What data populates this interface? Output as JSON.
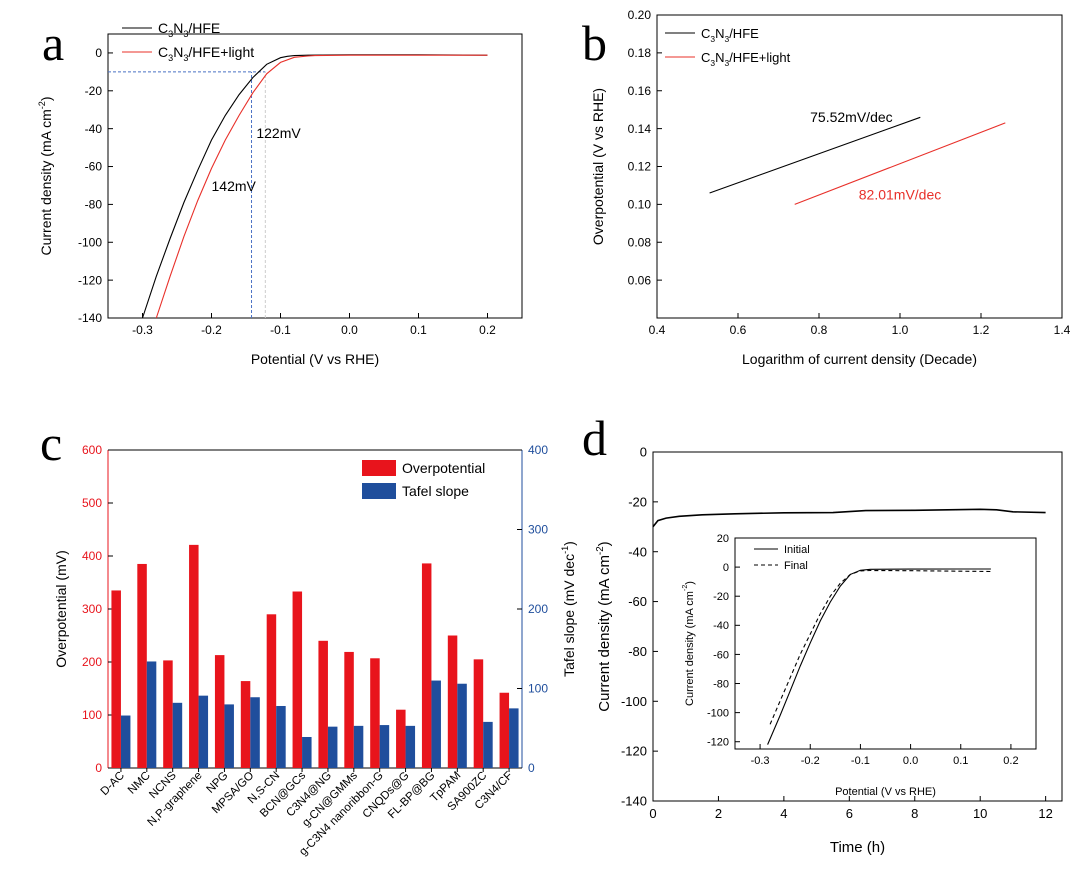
{
  "chart_data": [
    {
      "panel": "a",
      "type": "line",
      "xlabel": "Potential (V vs RHE)",
      "ylabel": "Current density (mA cm",
      "ylabel_sup": "-2",
      "ylabel_close": ")",
      "xlim": [
        -0.35,
        0.25
      ],
      "ylim": [
        -140,
        10
      ],
      "xticks": [
        -0.3,
        -0.2,
        -0.1,
        0.0,
        0.1,
        0.2
      ],
      "xtick_labels": [
        "-0.3",
        "-0.2",
        "-0.1",
        "0.0",
        "0.1",
        "0.2"
      ],
      "yticks": [
        0,
        -20,
        -40,
        -60,
        -80,
        -100,
        -120,
        -140
      ],
      "ytick_labels": [
        "0",
        "-20",
        "-40",
        "-60",
        "-80",
        "-100",
        "-120",
        "-140"
      ],
      "legend": [
        {
          "base": "C",
          "s1": "3",
          "mid": "N",
          "s2": "3",
          "tail": "/HFE",
          "color": "#000000"
        },
        {
          "base": "C",
          "s1": "3",
          "mid": "N",
          "s2": "3",
          "tail": "/HFE+light",
          "color": "#e8302a"
        }
      ],
      "series": [
        {
          "x": [
            -0.3,
            -0.28,
            -0.26,
            -0.24,
            -0.22,
            -0.2,
            -0.18,
            -0.16,
            -0.14,
            -0.12,
            -0.1,
            -0.09,
            -0.08,
            -0.06,
            0.0,
            0.1,
            0.2
          ],
          "y": [
            -140,
            -118,
            -98,
            -79,
            -62,
            -46,
            -33,
            -22,
            -13,
            -6,
            -2.5,
            -1.8,
            -1.4,
            -1.2,
            -1.0,
            -1.0,
            -1.2
          ],
          "color": "#000000"
        },
        {
          "x": [
            -0.28,
            -0.26,
            -0.24,
            -0.22,
            -0.2,
            -0.18,
            -0.16,
            -0.14,
            -0.12,
            -0.1,
            -0.08,
            -0.06,
            -0.05,
            0.0,
            0.1,
            0.2
          ],
          "y": [
            -140,
            -118,
            -97,
            -78,
            -61,
            -46,
            -33,
            -21,
            -11,
            -5,
            -2.3,
            -1.6,
            -1.4,
            -1.2,
            -1.2,
            -1.2
          ],
          "color": "#e8302a"
        }
      ],
      "guides": [
        {
          "type": "h",
          "y": -10,
          "x_from": -0.35,
          "x_to": -0.122,
          "color": "#4a72c4"
        },
        {
          "type": "v",
          "x": -0.142,
          "y_from": -140,
          "y_to": -10,
          "color": "#4a72c4"
        },
        {
          "type": "v",
          "x": -0.122,
          "y_from": -140,
          "y_to": -10,
          "color": "#cccccc"
        }
      ],
      "annotations": [
        {
          "text": "122mV",
          "x": -0.135,
          "y": -45
        },
        {
          "text": "142mV",
          "x": -0.2,
          "y": -73
        }
      ]
    },
    {
      "panel": "b",
      "type": "line",
      "xlabel": "Logarithm of current density (Decade)",
      "ylabel": "Overpotential (V vs RHE)",
      "xlim": [
        0.4,
        1.4
      ],
      "ylim": [
        0.04,
        0.2
      ],
      "xticks": [
        0.4,
        0.6,
        0.8,
        1.0,
        1.2,
        1.4
      ],
      "xtick_labels": [
        "0.4",
        "0.6",
        "0.8",
        "1.0",
        "1.2",
        "1.4"
      ],
      "yticks": [
        0.06,
        0.08,
        0.1,
        0.12,
        0.14,
        0.16,
        0.18,
        0.2
      ],
      "ytick_labels": [
        "0.06",
        "0.08",
        "0.10",
        "0.12",
        "0.14",
        "0.16",
        "0.18",
        "0.20"
      ],
      "legend": [
        {
          "base": "C",
          "s1": "3",
          "mid": "N",
          "s2": "3",
          "tail": "/HFE",
          "color": "#000000"
        },
        {
          "base": "C",
          "s1": "3",
          "mid": "N",
          "s2": "3",
          "tail": "/HFE+light",
          "color": "#e8302a"
        }
      ],
      "series": [
        {
          "x": [
            0.53,
            1.05
          ],
          "y": [
            0.106,
            0.146
          ],
          "color": "#000000"
        },
        {
          "x": [
            0.74,
            1.26
          ],
          "y": [
            0.1,
            0.143
          ],
          "color": "#e8302a"
        }
      ],
      "annotations": [
        {
          "text": "75.52mV/dec",
          "x": 0.88,
          "y": 0.1435,
          "color": "#000000"
        },
        {
          "text": "82.01mV/dec",
          "x": 1.0,
          "y": 0.1025,
          "color": "#e8302a"
        }
      ]
    },
    {
      "panel": "c",
      "type": "bar",
      "ylabel": "Overpotential (mV)",
      "y2label": "Tafel slope (mV dec",
      "y2label_sup": "-1",
      "y2label_close": ")",
      "ylim": [
        0,
        600
      ],
      "y2lim": [
        0,
        400
      ],
      "yticks": [
        0,
        100,
        200,
        300,
        400,
        500,
        600
      ],
      "ytick_labels": [
        "0",
        "100",
        "200",
        "300",
        "400",
        "500",
        "600"
      ],
      "y2ticks": [
        0,
        100,
        200,
        300,
        400
      ],
      "y2tick_labels": [
        "0",
        "100",
        "200",
        "300",
        "400"
      ],
      "categories": [
        "D-AC",
        "NMC",
        "NCNS",
        "N,P-graphene",
        "NPG",
        "MPSA/GO",
        "N,S-CN",
        "BCN@GCs",
        "C3N4@NG",
        "g-CN@GMMs",
        "g-C3N4 nanoribbon-G",
        "CNQDs@G",
        "FL-BP@BG",
        "TpPAM",
        "SA900ZC",
        "C3N4/CF"
      ],
      "series": [
        {
          "name": "Overpotential",
          "axis": "left",
          "color": "#e8141c",
          "values": [
            335,
            385,
            203,
            421,
            213,
            164,
            290,
            333,
            240,
            219,
            207,
            110,
            386,
            250,
            205,
            142
          ]
        },
        {
          "name": "Tafel slope",
          "axis": "right",
          "color": "#1f4e9c",
          "values": [
            66,
            134,
            82,
            91,
            80,
            89,
            78,
            39,
            52,
            53,
            54,
            53,
            110,
            106,
            58,
            75
          ]
        }
      ],
      "legend_position": "top-right"
    },
    {
      "panel": "d",
      "type": "line",
      "xlabel": "Time (h)",
      "ylabel": "Current density (mA cm",
      "ylabel_sup": "-2",
      "ylabel_close": ")",
      "xlim": [
        0,
        12.5
      ],
      "ylim": [
        -140,
        0
      ],
      "xticks": [
        0,
        2,
        4,
        6,
        8,
        10,
        12
      ],
      "xtick_labels": [
        "0",
        "2",
        "4",
        "6",
        "8",
        "10",
        "12"
      ],
      "yticks": [
        0,
        -20,
        -40,
        -60,
        -80,
        -100,
        -120,
        -140
      ],
      "ytick_labels": [
        "0",
        "-20",
        "-40",
        "-60",
        "-80",
        "-100",
        "-120",
        "-140"
      ],
      "series": [
        {
          "x": [
            0,
            0.15,
            0.4,
            0.8,
            1.5,
            2.5,
            4,
            5.5,
            6.5,
            8,
            9,
            10,
            10.5,
            11,
            12
          ],
          "y": [
            -30,
            -27.5,
            -26.5,
            -25.8,
            -25.2,
            -24.8,
            -24.4,
            -24.3,
            -23.5,
            -23.4,
            -23.2,
            -23.0,
            -23.2,
            -24.0,
            -24.3
          ],
          "color": "#000000"
        }
      ],
      "inset": {
        "xlabel": "Potential (V vs RHE)",
        "ylabel": "Current density (mA cm",
        "ylabel_sup": "-2",
        "ylabel_close": ")",
        "xlim": [
          -0.35,
          0.25
        ],
        "ylim": [
          -125,
          20
        ],
        "xticks": [
          -0.3,
          -0.2,
          -0.1,
          0.0,
          0.1,
          0.2
        ],
        "xtick_labels": [
          "-0.3",
          "-0.2",
          "-0.1",
          "0.0",
          "0.1",
          "0.2"
        ],
        "yticks": [
          20,
          0,
          -20,
          -40,
          -60,
          -80,
          -100,
          -120
        ],
        "ytick_labels": [
          "20",
          "0",
          "-20",
          "-40",
          "-60",
          "-80",
          "-100",
          "-120"
        ],
        "legend": [
          {
            "label": "Initial",
            "style": "solid"
          },
          {
            "label": "Final",
            "style": "dashed"
          }
        ],
        "series": [
          {
            "name": "Initial",
            "style": "solid",
            "x": [
              -0.285,
              -0.26,
              -0.24,
              -0.22,
              -0.2,
              -0.18,
              -0.16,
              -0.14,
              -0.12,
              -0.1,
              -0.08,
              0.0,
              0.1,
              0.16
            ],
            "y": [
              -122,
              -102,
              -85,
              -68,
              -52,
              -37,
              -24,
              -13,
              -5,
              -2.2,
              -1.5,
              -1.4,
              -1.3,
              -1.3
            ]
          },
          {
            "name": "Final",
            "style": "dashed",
            "x": [
              -0.28,
              -0.26,
              -0.24,
              -0.22,
              -0.2,
              -0.18,
              -0.16,
              -0.14,
              -0.12,
              -0.1,
              -0.08,
              0.0,
              0.1,
              0.16
            ],
            "y": [
              -108,
              -92,
              -76,
              -60,
              -46,
              -32,
              -20,
              -11,
              -5,
              -2.6,
              -2.3,
              -2.5,
              -2.8,
              -3.0
            ]
          }
        ]
      }
    }
  ],
  "panel_letters": {
    "a": "a",
    "b": "b",
    "c": "c",
    "d": "d"
  }
}
